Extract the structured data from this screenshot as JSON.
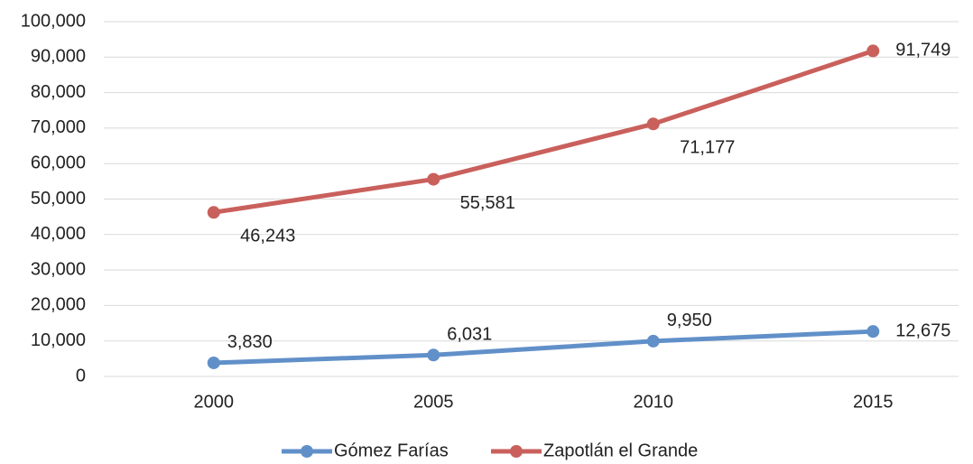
{
  "chart_data": {
    "type": "line",
    "categories": [
      "2000",
      "2005",
      "2010",
      "2015"
    ],
    "series": [
      {
        "name": "Gómez Farías",
        "color": "#6190c9",
        "values": [
          3830,
          6031,
          9950,
          12675
        ],
        "value_labels": [
          "3,830",
          "6,031",
          "9,950",
          "12,675"
        ]
      },
      {
        "name": "Zapotlán el Grande",
        "color": "#c9605c",
        "values": [
          46243,
          55581,
          71177,
          91749
        ],
        "value_labels": [
          "46,243",
          "55,581",
          "71,177",
          "91,749"
        ]
      }
    ],
    "ylim": [
      0,
      100000
    ],
    "yticks": [
      0,
      {
        "value": 10000,
        "label": "10,000"
      },
      {
        "value": 20000,
        "label": "20,000"
      },
      {
        "value": 30000,
        "label": "30,000"
      },
      {
        "value": 40000,
        "label": "40,000"
      },
      {
        "value": 50000,
        "label": "50,000"
      },
      {
        "value": 60000,
        "label": "60,000"
      },
      {
        "value": 70000,
        "label": "70,000"
      },
      {
        "value": 80000,
        "label": "80,000"
      },
      {
        "value": 90000,
        "label": "90,000"
      },
      {
        "value": 100000,
        "label": "100,000"
      }
    ],
    "grid": true,
    "legend": "bottom"
  }
}
